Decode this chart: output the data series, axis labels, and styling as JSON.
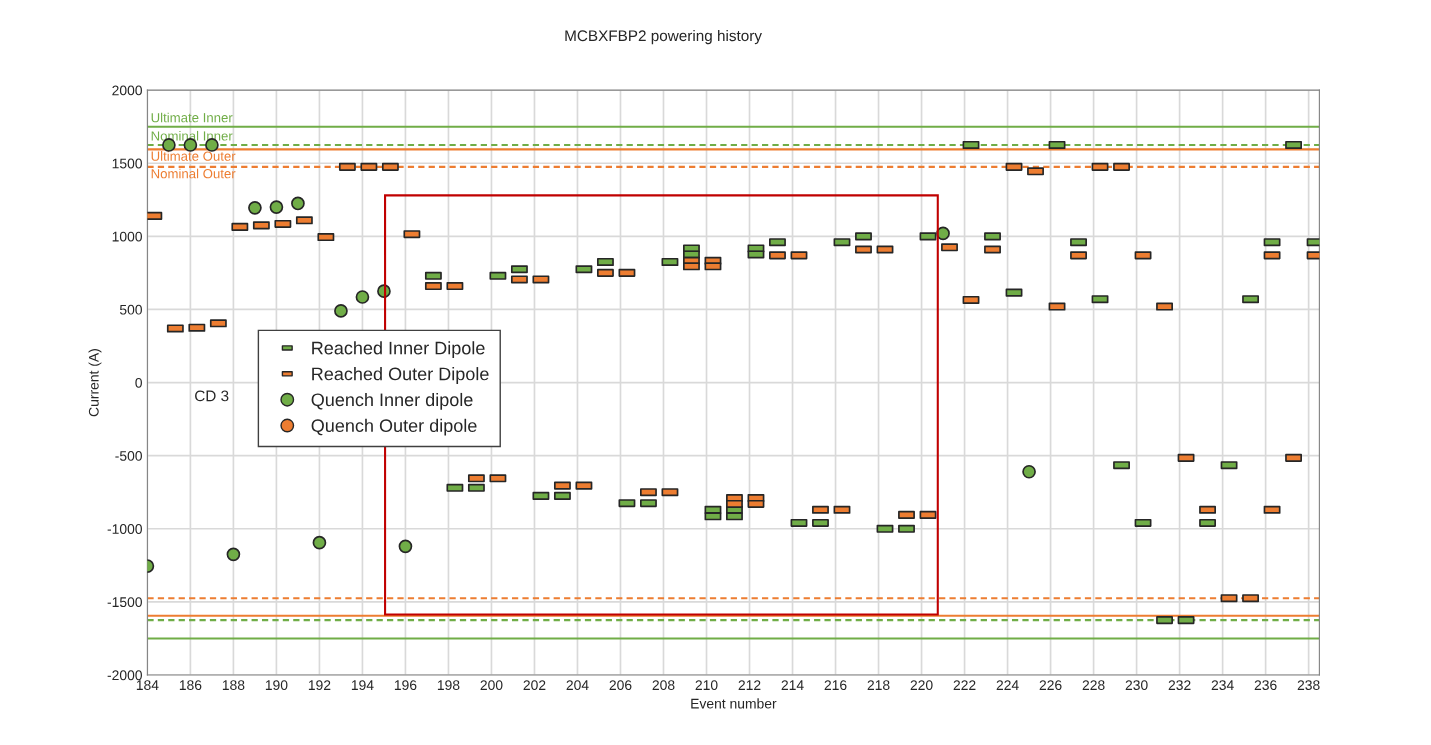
{
  "chart_data": {
    "type": "scatter",
    "title": "MCBXFBP2 powering history",
    "xlabel": "Event number",
    "ylabel": "Current (A)",
    "xlim": [
      184,
      238.5
    ],
    "xticks": [
      184,
      186,
      188,
      190,
      192,
      194,
      196,
      198,
      200,
      202,
      204,
      206,
      208,
      210,
      212,
      214,
      216,
      218,
      220,
      222,
      224,
      226,
      228,
      230,
      232,
      234,
      236,
      238
    ],
    "ylim": [
      -2000,
      2000
    ],
    "yticks": [
      -2000,
      -1500,
      -1000,
      -500,
      0,
      500,
      1000,
      1500,
      2000
    ],
    "grid": true,
    "legend": "left",
    "series": [
      {
        "name": "Reached Inner Dipole",
        "marker": "square",
        "color": "#70ad47",
        "x": [
          197.3,
          200.3,
          201.3,
          204.3,
          205.3,
          208.3,
          209.3,
          209.3,
          212.3,
          212.3,
          213.3,
          216.3,
          217.3,
          220.3,
          222.3,
          223.3,
          224.3,
          226.3,
          227.3,
          228.3,
          235.3,
          236.3,
          237.3,
          238.3,
          198.3,
          199.3,
          202.3,
          203.3,
          206.3,
          207.3,
          210.3,
          210.3,
          211.3,
          211.3,
          214.3,
          215.3,
          218.3,
          219.3,
          229.3,
          230.3,
          231.3,
          232.3,
          233.3,
          234.3
        ],
        "values": [
          730,
          730,
          775,
          775,
          825,
          825,
          917,
          876,
          917,
          876,
          960,
          960,
          1000,
          1000,
          1625,
          1000,
          615,
          1625,
          960,
          570,
          570,
          960,
          1625,
          960,
          -720,
          -720,
          -775,
          -775,
          -825,
          -825,
          -870,
          -915,
          -870,
          -915,
          -960,
          -960,
          -1000,
          -1000,
          -565,
          -960,
          -1625,
          -1625,
          -960,
          -565
        ]
      },
      {
        "name": "Reached Outer Dipole",
        "marker": "square",
        "color": "#ed7d31",
        "x": [
          184.3,
          185.3,
          186.3,
          187.3,
          188.3,
          189.3,
          190.3,
          191.3,
          192.3,
          193.3,
          194.3,
          195.3,
          196.3,
          197.3,
          198.3,
          201.3,
          202.3,
          205.3,
          206.3,
          209.3,
          209.3,
          210.3,
          210.3,
          213.3,
          214.3,
          217.3,
          218.3,
          221.3,
          222.3,
          223.3,
          224.3,
          225.3,
          226.3,
          227.3,
          228.3,
          229.3,
          230.3,
          231.3,
          236.3,
          238.3,
          199.3,
          200.3,
          203.3,
          204.3,
          207.3,
          208.3,
          211.3,
          211.3,
          212.3,
          212.3,
          215.3,
          216.3,
          219.3,
          220.3,
          232.3,
          233.3,
          234.3,
          235.3,
          236.3,
          237.3
        ],
        "values": [
          1140,
          370,
          375,
          405,
          1065,
          1075,
          1085,
          1110,
          995,
          1475,
          1475,
          1475,
          1015,
          660,
          660,
          705,
          705,
          750,
          750,
          833,
          795,
          833,
          795,
          870,
          870,
          910,
          910,
          925,
          565,
          910,
          1475,
          1445,
          520,
          870,
          1475,
          1475,
          870,
          520,
          870,
          870,
          -655,
          -655,
          -705,
          -705,
          -750,
          -750,
          -790,
          -830,
          -790,
          -830,
          -870,
          -870,
          -905,
          -905,
          -515,
          -870,
          -1475,
          -1475,
          -870,
          -515
        ]
      },
      {
        "name": "Quench Inner dipole",
        "marker": "circle",
        "color": "#70ad47",
        "x": [
          184,
          185,
          186,
          187,
          188,
          189,
          190,
          191,
          192,
          193,
          194,
          195,
          196,
          221,
          225
        ],
        "values": [
          -1255,
          1625,
          1625,
          1625,
          -1175,
          1195,
          1200,
          1225,
          -1095,
          490,
          585,
          625,
          -1120,
          1020,
          -610
        ]
      },
      {
        "name": "Quench Outer dipole",
        "marker": "circle",
        "color": "#ed7d31"
      }
    ],
    "ref_lines": [
      {
        "axis": "y",
        "value": 1750,
        "label": "Ultimate Inner",
        "color": "#70ad47",
        "line_style": "solid"
      },
      {
        "axis": "y",
        "value": 1625,
        "label": "Nominal Inner",
        "color": "#70ad47",
        "line_style": "dashed"
      },
      {
        "axis": "y",
        "value": 1595,
        "label": "Ultimate Outer",
        "color": "#ed7d31",
        "line_style": "solid"
      },
      {
        "axis": "y",
        "value": 1475,
        "label": "Nominal Outer",
        "color": "#ed7d31",
        "line_style": "dashed"
      },
      {
        "axis": "y",
        "value": -1750,
        "color": "#70ad47",
        "line_style": "solid"
      },
      {
        "axis": "y",
        "value": -1625,
        "color": "#70ad47",
        "line_style": "dashed"
      },
      {
        "axis": "y",
        "value": -1595,
        "color": "#ed7d31",
        "line_style": "solid"
      },
      {
        "axis": "y",
        "value": -1475,
        "color": "#ed7d31",
        "line_style": "dashed"
      }
    ],
    "annotations": [
      "CD 3"
    ]
  }
}
